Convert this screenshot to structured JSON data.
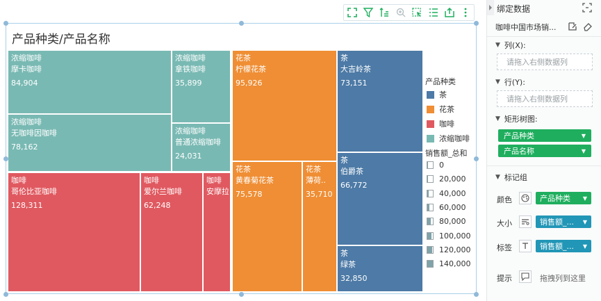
{
  "toolbar": {
    "icons": [
      "expand-icon",
      "filter-icon",
      "sort-icon",
      "zoom-icon",
      "select-icon",
      "list-icon",
      "export-icon",
      "more-icon"
    ]
  },
  "chart_data": {
    "type": "treemap",
    "title": "产品种类/产品名称",
    "nodes": [
      {
        "category": "浓缩咖啡",
        "name": "摩卡咖啡",
        "value": 84904,
        "label": "84,904"
      },
      {
        "category": "浓缩咖啡",
        "name": "拿铁咖啡",
        "value": 35899,
        "label": "35,899"
      },
      {
        "category": "浓缩咖啡",
        "name": "无咖啡因咖啡",
        "value": 78162,
        "label": "78,162"
      },
      {
        "category": "浓缩咖啡",
        "name": "普通浓缩咖啡",
        "value": 24031,
        "label": "24,031"
      },
      {
        "category": "咖啡",
        "name": "哥伦比亚咖啡",
        "value": 128311,
        "label": "128,311"
      },
      {
        "category": "咖啡",
        "name": "爱尔兰咖啡",
        "value": 62248,
        "label": "62,248"
      },
      {
        "category": "咖啡",
        "name": "安摩拉",
        "value": null,
        "label": ""
      },
      {
        "category": "花茶",
        "name": "柠檬花茶",
        "value": 95926,
        "label": "95,926"
      },
      {
        "category": "花茶",
        "name": "黄春菊花茶",
        "value": 75578,
        "label": "75,578"
      },
      {
        "category": "花茶",
        "name": "薄荷..",
        "value": 35710,
        "label": "35,710"
      },
      {
        "category": "茶",
        "name": "大吉岭茶",
        "value": 73151,
        "label": "73,151"
      },
      {
        "category": "茶",
        "name": "伯爵茶",
        "value": 66772,
        "label": "66,772"
      },
      {
        "category": "茶",
        "name": "绿茶",
        "value": 32850,
        "label": "32,850"
      }
    ],
    "legend": {
      "color_title": "产品种类",
      "color_items": [
        {
          "name": "茶",
          "color": "#4d7aa6"
        },
        {
          "name": "花茶",
          "color": "#ef8e34"
        },
        {
          "name": "咖啡",
          "color": "#e05960"
        },
        {
          "name": "浓缩咖啡",
          "color": "#79b9b3"
        }
      ],
      "size_title": "销售额_总和",
      "size_items": [
        "0",
        "20,000",
        "40,000",
        "60,000",
        "80,000",
        "100,000",
        "120,000",
        "140,000"
      ],
      "placement": "right"
    }
  },
  "panel": {
    "title": "绑定数据",
    "dataset": "咖啡中国市场销...",
    "columns_label": "列(X):",
    "columns_placeholder": "请拖入右侧数据列",
    "rows_label": "行(Y):",
    "rows_placeholder": "请拖入右侧数据列",
    "treemap_label": "矩形树图:",
    "treemap_fields": [
      "产品种类",
      "产品名称"
    ],
    "marks_label": "标记组",
    "color_label": "颜色",
    "color_field": "产品种类",
    "size_label": "大小",
    "size_field": "销售额_...",
    "tag_label": "标签",
    "tag_field": "销售额_...",
    "tip_label": "提示",
    "tip_placeholder": "拖拽列到这里",
    "accent_green": "#1fae5e",
    "accent_teal": "#2196b6"
  }
}
